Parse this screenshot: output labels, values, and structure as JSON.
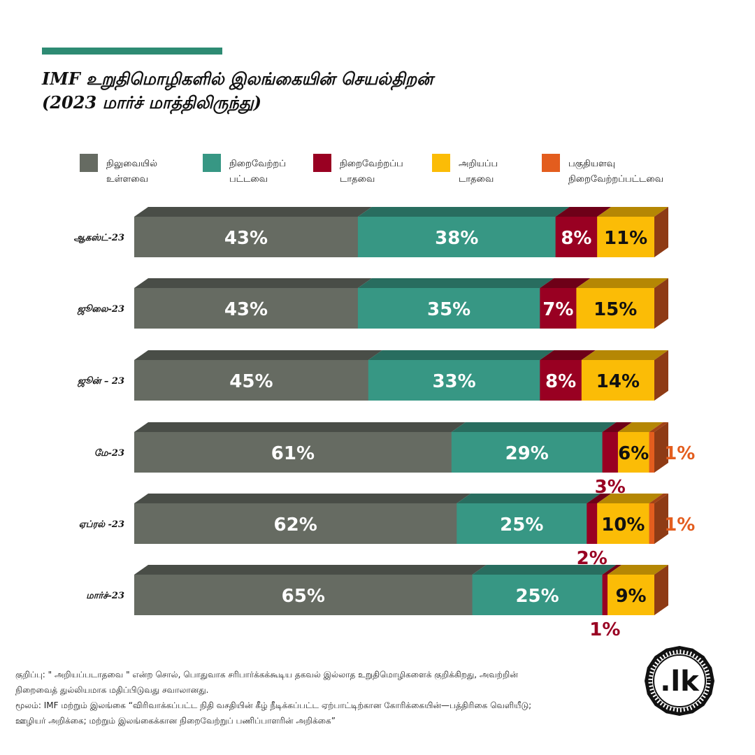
{
  "title": {
    "line1": "IMF உறுதிமொழிகளில் இலங்கையின் செயல்திறன்",
    "line2": "(2023 மார்ச் மாத்திலிருந்து)"
  },
  "colors": {
    "accent": "#2e8b73",
    "pending": "#666b62",
    "fulfilled": "#379784",
    "unfulfilled": "#990022",
    "unknown": "#fbbc06",
    "partial": "#e35d1e",
    "side": "#8e3b15"
  },
  "chart_data": {
    "type": "bar",
    "orientation": "horizontal",
    "stacked": true,
    "style": "3d",
    "legend_position": "top",
    "series": [
      {
        "key": "pending",
        "name": "நிலுவையில் உள்ளவை",
        "name_lines": [
          "நிலுவையில்",
          "உள்ளவை"
        ]
      },
      {
        "key": "fulfilled",
        "name": "நிறைவேற்றப் பட்டவை",
        "name_lines": [
          "நிறைவேற்றப்",
          "பட்டவை"
        ]
      },
      {
        "key": "unfulfilled",
        "name": "நிறைவேற்றப்ப டாதவை",
        "name_lines": [
          "நிறைவேற்றப்ப",
          "டாதவை"
        ]
      },
      {
        "key": "unknown",
        "name": "அறியப்ப டாதவை",
        "name_lines": [
          "அறியப்ப",
          "டாதவை"
        ]
      },
      {
        "key": "partial",
        "name": "பகுதியளவு நிறைவேற்றப்பட்டவை",
        "name_lines": [
          "பகுதியளவு",
          "நிறைவேற்றப்பட்டவை"
        ]
      }
    ],
    "categories": [
      "ஆகஸ்ட்-23",
      "ஜூலை-23",
      "ஜூன் – 23",
      "மே-23",
      "ஏப்ரல் -23",
      "மார்ச்-23"
    ],
    "values": {
      "pending": [
        43,
        43,
        45,
        61,
        62,
        65
      ],
      "fulfilled": [
        38,
        35,
        33,
        29,
        25,
        25
      ],
      "unfulfilled": [
        8,
        7,
        8,
        3,
        2,
        1
      ],
      "unknown": [
        11,
        15,
        14,
        6,
        10,
        9
      ],
      "partial": [
        0,
        0,
        0,
        1,
        1,
        0
      ]
    },
    "labels": {
      "pending": [
        "43%",
        "43%",
        "45%",
        "61%",
        "62%",
        "65%"
      ],
      "fulfilled": [
        "38%",
        "35%",
        "33%",
        "29%",
        "25%",
        "25%"
      ],
      "unfulfilled": [
        "8%",
        "7%",
        "8%",
        "3%",
        "2%",
        "1%"
      ],
      "unknown": [
        "11%",
        "15%",
        "14%",
        "6%",
        "10%",
        "9%"
      ],
      "partial": [
        "",
        "",
        "",
        "1%",
        "1%",
        ""
      ]
    }
  },
  "footer": {
    "note": "குறிப்பு: \" அறியப்படாதவை \" என்ற சொல், பொதுவாக சரிபார்க்கக்கூடிய தகவல் இல்லாத உறுதிமொழிகளைக் குறிக்கிறது, அவற்றின் நிறைவைத் துல்லியமாக மதிப்பிடுவது சவாலானது.",
    "source": "மூலம்: IMF மற்றும் இலங்கை “விரிவாக்கப்பட்ட நிதி வசதியின் கீழ் நீடிக்கப்பட்ட ஏற்பாட்டிற்கான கோரிக்கையின்—பத்திரிகை வெளியீடு; ஊழியர் அறிக்கை; மற்றும் இலங்கைக்கான நிறைவேற்றுப் பணிப்பாளரின் அறிக்கை”"
  },
  "logo": {
    "text": ".lk"
  }
}
